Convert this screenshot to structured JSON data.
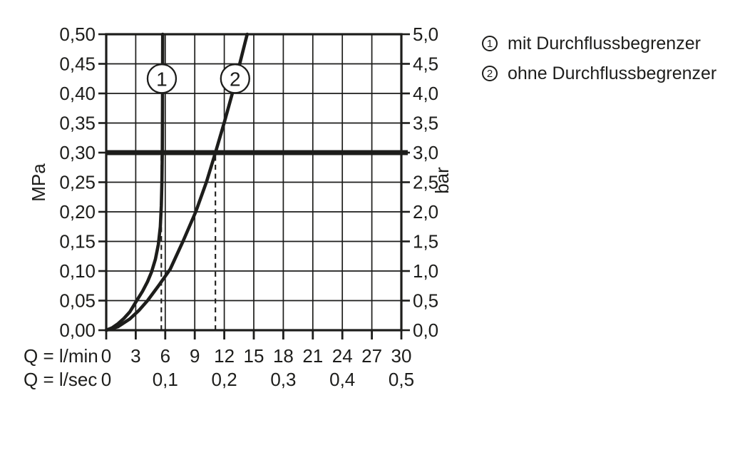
{
  "colors": {
    "line": "#1d1d1b",
    "background": "#ffffff"
  },
  "legend": {
    "items": [
      {
        "symbol": "1",
        "label": "mit Durchflussbegrenzer"
      },
      {
        "symbol": "2",
        "label": "ohne Durchflussbegrenzer"
      }
    ]
  },
  "chart_data": {
    "type": "line",
    "title": "",
    "x_axis": {
      "max_lmin": 30,
      "grid_step_lmin": 3,
      "rows": [
        {
          "label": "Q = l/min",
          "ticks": [
            {
              "label": "0",
              "at": 0
            },
            {
              "label": "3",
              "at": 3
            },
            {
              "label": "6",
              "at": 6
            },
            {
              "label": "9",
              "at": 9
            },
            {
              "label": "12",
              "at": 12
            },
            {
              "label": "15",
              "at": 15
            },
            {
              "label": "18",
              "at": 18
            },
            {
              "label": "21",
              "at": 21
            },
            {
              "label": "24",
              "at": 24
            },
            {
              "label": "27",
              "at": 27
            },
            {
              "label": "30",
              "at": 30
            }
          ]
        },
        {
          "label": "Q = l/sec",
          "ticks": [
            {
              "label": "0",
              "at": 0
            },
            {
              "label": "0,1",
              "at": 6
            },
            {
              "label": "0,2",
              "at": 12
            },
            {
              "label": "0,3",
              "at": 18
            },
            {
              "label": "0,4",
              "at": 24
            },
            {
              "label": "0,5",
              "at": 30
            }
          ]
        }
      ]
    },
    "y_axis_left": {
      "unit": "MPa",
      "max_mpa": 0.5,
      "grid_step_mpa": 0.05,
      "tick_labels": [
        "0,50",
        "0,45",
        "0,40",
        "0,35",
        "0,30",
        "0,25",
        "0,20",
        "0,15",
        "0,10",
        "0,05",
        "0,00"
      ]
    },
    "y_axis_right": {
      "unit": "bar",
      "tick_labels": [
        "5,0",
        "4,5",
        "4,0",
        "3,5",
        "3,0",
        "2,5",
        "2,0",
        "1,5",
        "1,0",
        "0,5",
        "0,0"
      ]
    },
    "reference_line_mpa": 0.3,
    "dashed_lines_lmin": [
      5.6,
      11.1
    ],
    "series": [
      {
        "id": "1",
        "name": "mit Durchflussbegrenzer",
        "marker": {
          "q_lmin": 5.65,
          "p_mpa": 0.425
        },
        "points": [
          [
            0,
            0
          ],
          [
            0.6,
            0.004
          ],
          [
            1.2,
            0.011
          ],
          [
            1.8,
            0.02
          ],
          [
            2.4,
            0.031
          ],
          [
            3.1,
            0.05
          ],
          [
            3.7,
            0.066
          ],
          [
            4.2,
            0.082
          ],
          [
            4.6,
            0.098
          ],
          [
            5.0,
            0.12
          ],
          [
            5.3,
            0.145
          ],
          [
            5.5,
            0.175
          ],
          [
            5.6,
            0.21
          ],
          [
            5.66,
            0.25
          ],
          [
            5.7,
            0.3
          ],
          [
            5.72,
            0.37
          ],
          [
            5.73,
            0.43
          ],
          [
            5.74,
            0.5
          ]
        ]
      },
      {
        "id": "2",
        "name": "ohne Durchflussbegrenzer",
        "marker": {
          "q_lmin": 13.1,
          "p_mpa": 0.425
        },
        "points": [
          [
            0,
            0
          ],
          [
            1.2,
            0.006
          ],
          [
            2.4,
            0.019
          ],
          [
            3.3,
            0.033
          ],
          [
            4.2,
            0.05
          ],
          [
            5.4,
            0.077
          ],
          [
            6.5,
            0.103
          ],
          [
            7.8,
            0.15
          ],
          [
            9.1,
            0.2
          ],
          [
            10.2,
            0.251
          ],
          [
            11.1,
            0.3
          ],
          [
            12.0,
            0.351
          ],
          [
            12.9,
            0.405
          ],
          [
            13.6,
            0.452
          ],
          [
            14.1,
            0.485
          ],
          [
            14.33,
            0.5
          ]
        ]
      }
    ]
  }
}
